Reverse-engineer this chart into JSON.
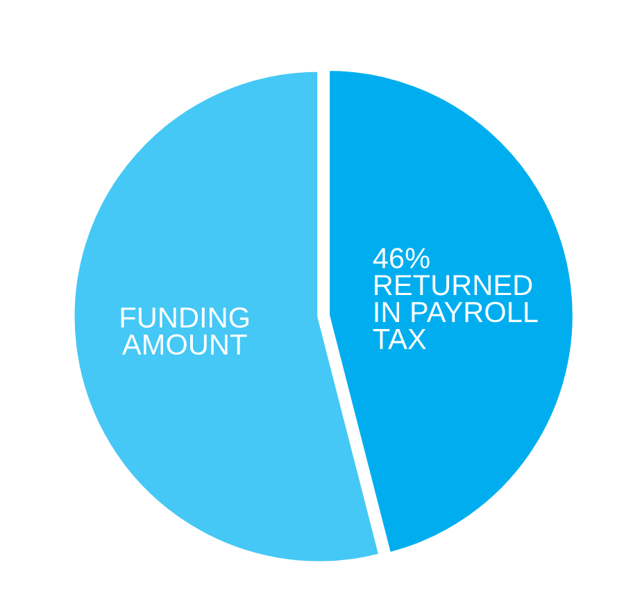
{
  "chart_data": {
    "type": "pie",
    "categories": [
      "RETURNED\nIN PAYROLL\nTAX",
      "FUNDING\nAMOUNT"
    ],
    "values": [
      46,
      54
    ],
    "value_labels": [
      "46%",
      null
    ],
    "colors": [
      "#00aeef",
      "#45c8f5"
    ],
    "legend": false
  }
}
